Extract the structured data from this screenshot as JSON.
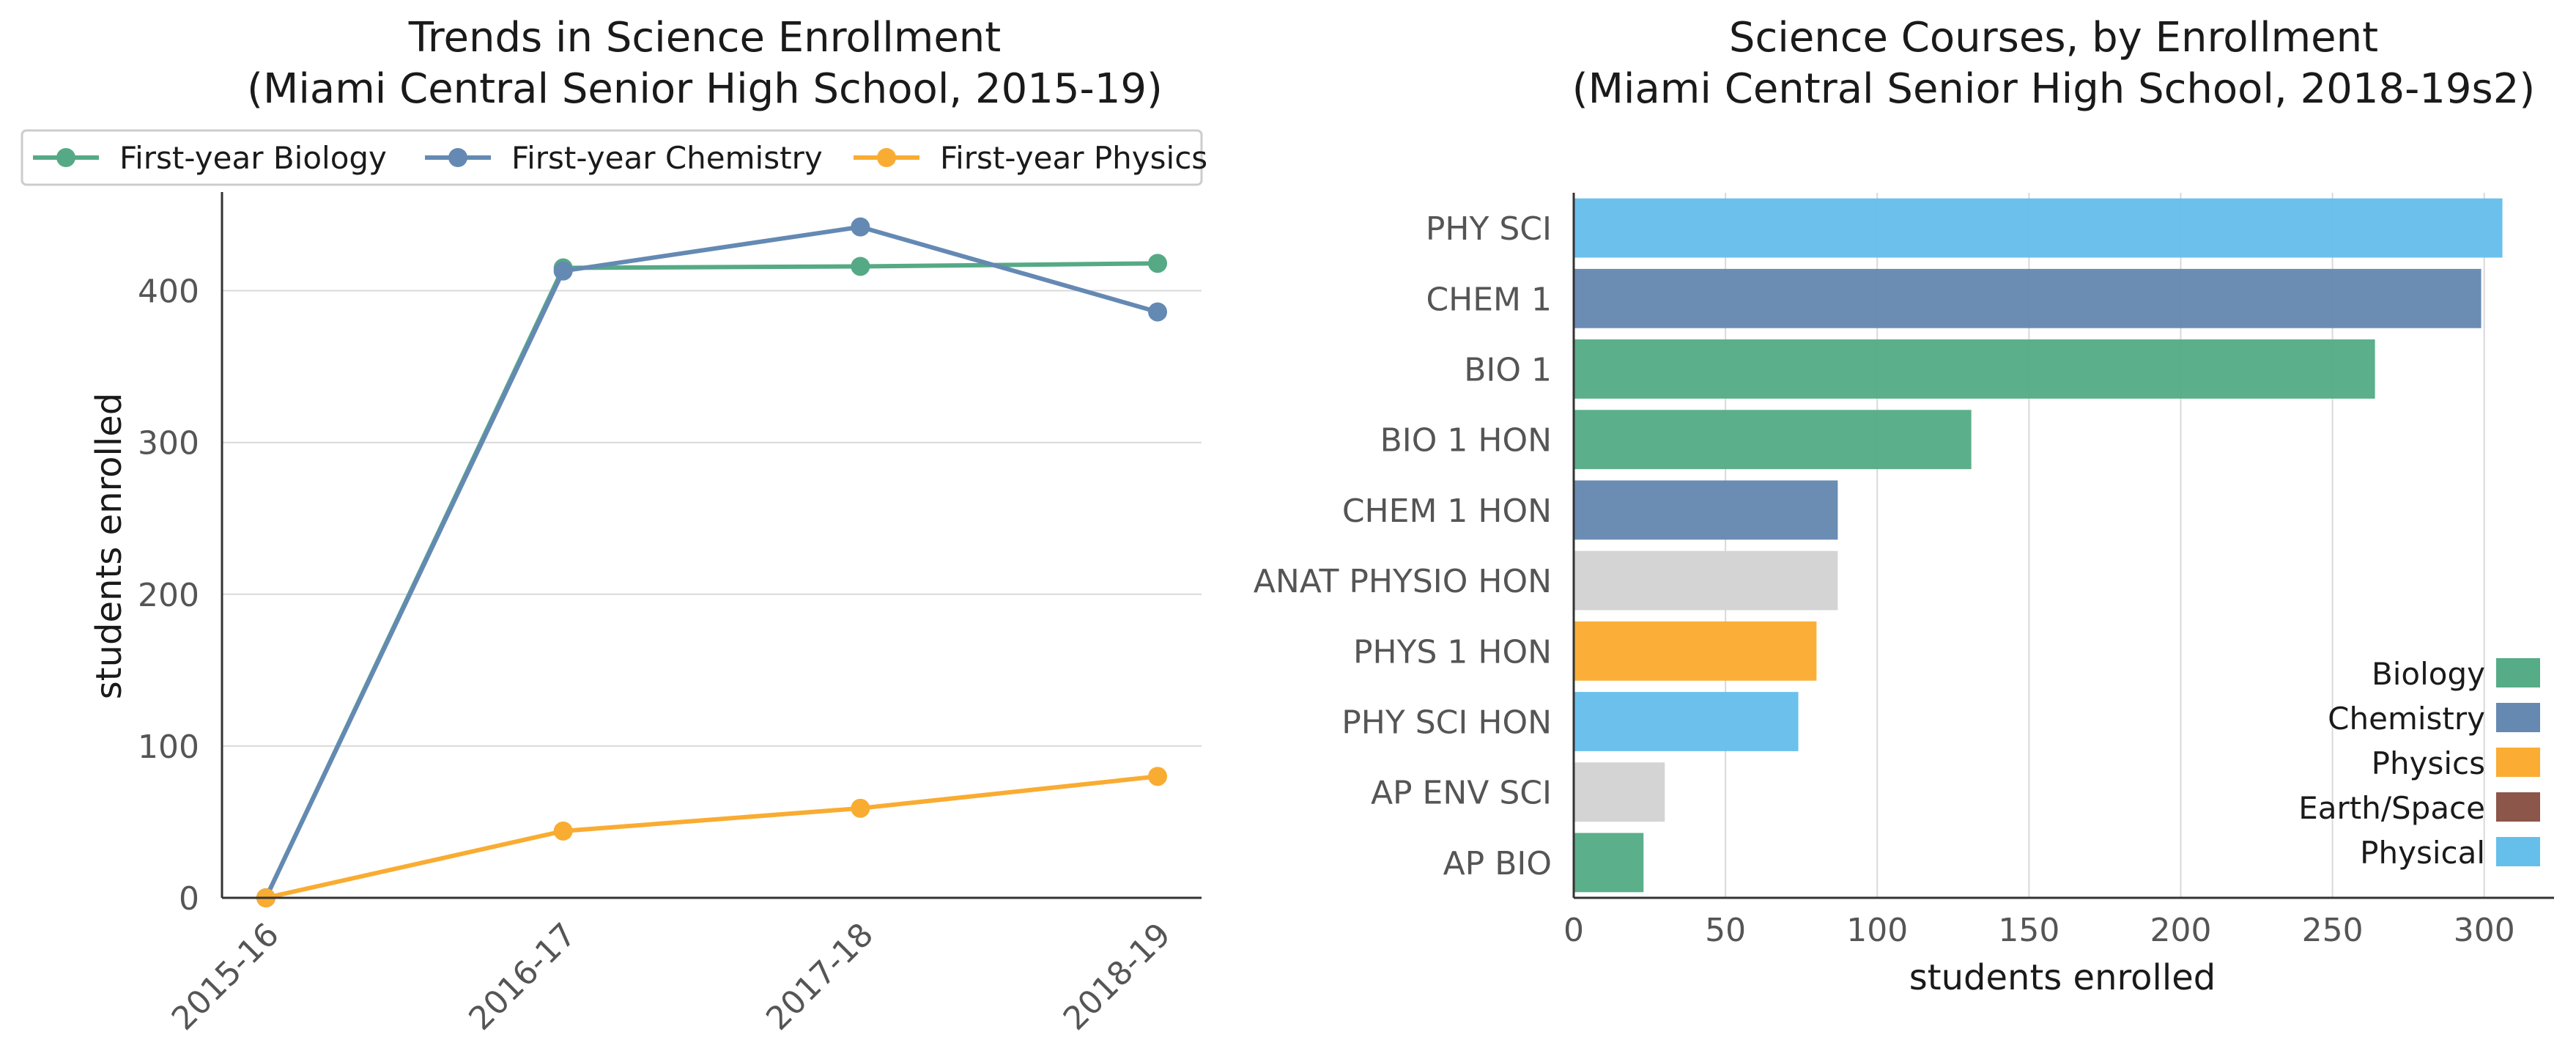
{
  "chart_data": [
    {
      "type": "line",
      "title": "Trends in Science Enrollment",
      "subtitle": "(Miami Central Senior High School, 2015-19)",
      "xlabel": "",
      "ylabel": "students enrolled",
      "categories": [
        "2015-16",
        "2016-17",
        "2017-18",
        "2018-19"
      ],
      "ylim": [
        0,
        465
      ],
      "yticks": [
        0,
        100,
        200,
        300,
        400
      ],
      "grid": "horizontal",
      "legend_position": "top",
      "series": [
        {
          "name": "First-year Biology",
          "color": "#55aa85",
          "values": [
            0,
            415,
            416,
            418
          ]
        },
        {
          "name": "First-year Chemistry",
          "color": "#6489b3",
          "values": [
            0,
            413,
            442,
            386
          ]
        },
        {
          "name": "First-year Physics",
          "color": "#f9ac32",
          "values": [
            0,
            44,
            59,
            80
          ]
        }
      ]
    },
    {
      "type": "bar",
      "orientation": "horizontal",
      "title": "Science Courses, by Enrollment",
      "subtitle": "(Miami Central Senior High School, 2018-19s2)",
      "xlabel": "students enrolled",
      "ylabel": "",
      "xlim": [
        0,
        323
      ],
      "xticks": [
        0,
        50,
        100,
        150,
        200,
        250,
        300
      ],
      "grid": "vertical",
      "legend_position": "bottom-right",
      "categories": [
        "PHY SCI",
        "CHEM 1",
        "BIO 1",
        "BIO 1 HON",
        "CHEM 1 HON",
        "ANAT PHYSIO HON",
        "PHYS 1 HON",
        "PHY SCI HON",
        "AP ENV SCI",
        "AP BIO"
      ],
      "values": [
        306,
        299,
        264,
        131,
        87,
        87,
        80,
        74,
        30,
        23
      ],
      "bar_colors": [
        "#66bfeb",
        "#6689b2",
        "#56ac87",
        "#56ac87",
        "#6689b2",
        "#d3d3d3",
        "#fbac33",
        "#66bfeb",
        "#d3d3d3",
        "#56ac87"
      ],
      "legend": [
        {
          "name": "Biology",
          "color": "#56ac87"
        },
        {
          "name": "Chemistry",
          "color": "#6689b2"
        },
        {
          "name": "Physics",
          "color": "#fbac33"
        },
        {
          "name": "Earth/Space",
          "color": "#8c564b"
        },
        {
          "name": "Physical",
          "color": "#66bfeb"
        }
      ]
    }
  ]
}
